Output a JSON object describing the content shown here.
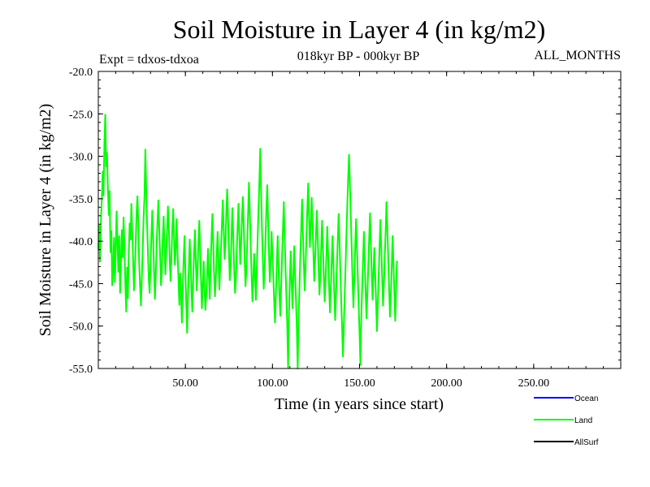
{
  "chart_data": {
    "type": "line",
    "title": "Soil Moisture in Layer 4 (in kg/m2)",
    "subtitle_left": "Expt = tdxos-tdxoa",
    "subtitle_center": "018kyr BP - 000kyr BP",
    "subtitle_right": "ALL_MONTHS",
    "xlabel": "Time (in years since start)",
    "ylabel": "Soil Moisture in Layer 4 (in kg/m2)",
    "xlim": [
      0,
      300
    ],
    "ylim": [
      -55,
      -20
    ],
    "x_ticks": [
      50,
      100,
      150,
      200,
      250
    ],
    "x_tick_labels": [
      "50.00",
      "100.00",
      "150.00",
      "200.00",
      "250.00"
    ],
    "y_ticks": [
      -20,
      -25,
      -30,
      -35,
      -40,
      -45,
      -50,
      -55
    ],
    "y_tick_labels": [
      "-20.0",
      "-25.0",
      "-30.0",
      "-35.0",
      "-40.0",
      "-45.0",
      "-50.0",
      "-55.0"
    ],
    "legend": [
      {
        "label": "Ocean",
        "color": "#0000ff"
      },
      {
        "label": "Land",
        "color": "#00ff00"
      },
      {
        "label": "AllSurf",
        "color": "#000000"
      }
    ],
    "series": [
      {
        "name": "Land",
        "color": "#00ff00",
        "x_start": 0,
        "x_step": 0.5,
        "values": [
          -40.9,
          -38.2,
          -42.4,
          -37.6,
          -35.1,
          -31.8,
          -34.6,
          -28.4,
          -25.1,
          -31.2,
          -29.6,
          -33.8,
          -36.9,
          -34.1,
          -41.3,
          -38.8,
          -45.2,
          -43.7,
          -39.6,
          -44.8,
          -41.1,
          -36.5,
          -40.2,
          -43.6,
          -39.4,
          -46.1,
          -42.3,
          -38.7,
          -41.9,
          -37.2,
          -40.6,
          -44.9,
          -48.3,
          -43.1,
          -46.7,
          -41.4,
          -37.9,
          -39.8,
          -35.6,
          -38.9,
          -42.5,
          -45.8,
          -43.2,
          -40.1,
          -36.4,
          -34.7,
          -38.2,
          -42.9,
          -45.3,
          -47.6,
          -44.2,
          -40.8,
          -37.3,
          -34.9,
          -29.2,
          -33.6,
          -37.9,
          -41.4,
          -44.7,
          -46.1,
          -42.8,
          -39.2,
          -36.4,
          -39.7,
          -43.5,
          -46.8,
          -44.1,
          -40.3,
          -37.6,
          -35.2,
          -38.5,
          -41.7,
          -45.2,
          -43.6,
          -39.8,
          -37.1,
          -40.4,
          -43.9,
          -41.2,
          -38.6,
          -35.9,
          -38.3,
          -42.1,
          -44.7,
          -41.9,
          -38.4,
          -36.2,
          -39.5,
          -42.8,
          -40.6,
          -37.4,
          -41.2,
          -44.3,
          -47.5,
          -43.8,
          -46.2,
          -49.6,
          -45.3,
          -42.1,
          -39.4,
          -43.7,
          -47.2,
          -50.8,
          -46.4,
          -43.1,
          -39.8,
          -42.5,
          -45.9,
          -48.3,
          -44.6,
          -41.2,
          -38.7,
          -42.3,
          -45.8,
          -43.4,
          -40.1,
          -37.6,
          -41.3,
          -44.8,
          -47.9,
          -45.2,
          -42.4,
          -45.6,
          -48.1,
          -46.3,
          -43.7,
          -40.9,
          -44.2,
          -46.8,
          -43.1,
          -39.6,
          -36.8,
          -40.4,
          -43.9,
          -46.5,
          -44.2,
          -41.7,
          -38.9,
          -42.3,
          -45.7,
          -43.2,
          -40.6,
          -37.8,
          -35.2,
          -38.6,
          -42.1,
          -40.3,
          -36.7,
          -33.9,
          -37.4,
          -41.2,
          -44.6,
          -42.8,
          -39.3,
          -36.1,
          -39.4,
          -43.2,
          -46.1,
          -44.7,
          -41.3,
          -38.2,
          -35.6,
          -39.1,
          -42.7,
          -40.4,
          -37.3,
          -34.8,
          -38.2,
          -41.9,
          -45.3,
          -43.6,
          -40.2,
          -36.9,
          -33.1,
          -36.8,
          -40.2,
          -43.9,
          -47.1,
          -44.3,
          -41.5,
          -44.2,
          -46.9,
          -43.4,
          -39.7,
          -36.2,
          -32.8,
          -29.1,
          -34.6,
          -38.7,
          -42.3,
          -45.6,
          -43.1,
          -39.8,
          -36.3,
          -33.4,
          -37.6,
          -41.3,
          -44.8,
          -42.2,
          -38.9,
          -41.6,
          -44.3,
          -47.2,
          -49.6,
          -46.1,
          -42.7,
          -39.4,
          -42.9,
          -46.3,
          -48.8,
          -45.4,
          -42.1,
          -38.7,
          -35.4,
          -39.2,
          -43.1,
          -46.7,
          -50.1,
          -54.9,
          -48.3,
          -44.6,
          -41.2,
          -44.7,
          -47.9,
          -44.2,
          -40.6,
          -43.8,
          -46.9,
          -50.3,
          -55.6,
          -49.1,
          -45.4,
          -41.8,
          -38.5,
          -35.1,
          -38.9,
          -42.6,
          -45.8,
          -43.1,
          -39.6,
          -36.3,
          -33.2,
          -37.1,
          -40.7,
          -38.2,
          -34.9,
          -37.8,
          -41.4,
          -44.7,
          -42.3,
          -39.1,
          -36.4,
          -39.8,
          -43.2,
          -46.3,
          -44.1,
          -40.8,
          -37.6,
          -40.9,
          -44.2,
          -47.1,
          -44.6,
          -41.4,
          -38.3,
          -41.7,
          -45.2,
          -48.4,
          -45.8,
          -42.6,
          -39.4,
          -42.8,
          -46.1,
          -49.3,
          -46.2,
          -43.1,
          -39.9,
          -36.8,
          -40.1,
          -43.6,
          -47.2,
          -50.4,
          -53.6,
          -49.8,
          -46.2,
          -42.7,
          -39.1,
          -35.6,
          -32.3,
          -29.8,
          -33.4,
          -37.2,
          -41.1,
          -44.6,
          -47.8,
          -44.3,
          -40.9,
          -37.4,
          -40.8,
          -44.1,
          -47.5,
          -50.8,
          -54.6,
          -49.2,
          -45.7,
          -42.3,
          -38.9,
          -42.4,
          -45.9,
          -49.1,
          -46.4,
          -43.2,
          -39.8,
          -36.7,
          -40.2,
          -43.6,
          -46.9,
          -44.1,
          -40.8,
          -43.9,
          -47.2,
          -50.6,
          -47.3,
          -44.1,
          -40.7,
          -37.5,
          -40.9,
          -44.3,
          -47.6,
          -45.1,
          -41.8,
          -38.6,
          -35.4,
          -38.7,
          -42.2,
          -45.6,
          -48.9,
          -46.2,
          -42.8,
          -39.4,
          -42.7,
          -46.1,
          -49.4,
          -45.8,
          -42.3
        ]
      },
      {
        "name": "Ocean",
        "color": "#0000ff",
        "values": []
      },
      {
        "name": "AllSurf",
        "color": "#000000",
        "values": []
      }
    ],
    "grid": false,
    "legend_position": "bottom-right"
  }
}
